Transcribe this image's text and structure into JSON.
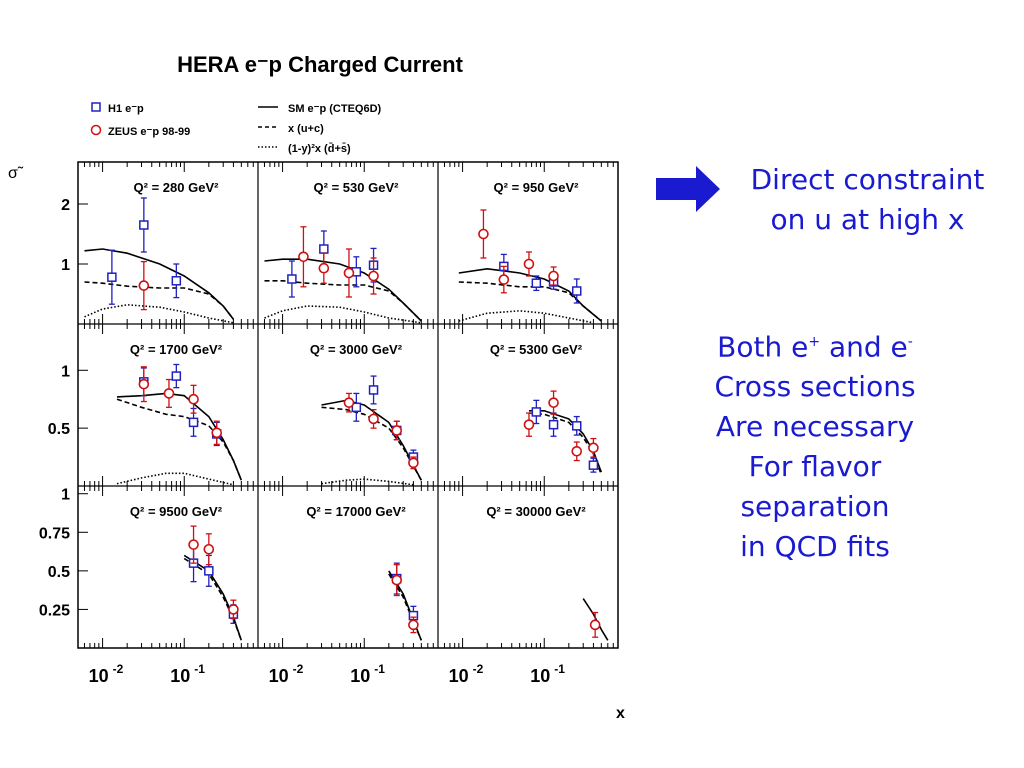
{
  "chart_data": {
    "type": "scatter",
    "title": "HERA e⁻p Charged Current",
    "xlabel": "x",
    "ylabel": "σ̃",
    "xscale": "log",
    "xlim": [
      0.005,
      0.8
    ],
    "x_tick_labels": [
      {
        "base": "10",
        "exp": "-2",
        "value": 0.01
      },
      {
        "base": "10",
        "exp": "-1",
        "value": 0.1
      }
    ],
    "legend": [
      {
        "label": "H1 e⁻p",
        "marker": "square",
        "color": "#2020c0"
      },
      {
        "label": "ZEUS e⁻p 98-99",
        "marker": "circle",
        "color": "#d01010"
      },
      {
        "label": "SM e⁻p (CTEQ6D)",
        "line": "solid"
      },
      {
        "label": "x (u+c)",
        "line": "dashed"
      },
      {
        "label": "(1-y)²x (d̄+s̄)",
        "line": "dotted"
      }
    ],
    "rows": [
      {
        "ylim": [
          0,
          2.7
        ],
        "yticks": [
          {
            "v": 1,
            "label": "1"
          },
          {
            "v": 2,
            "label": "2"
          }
        ]
      },
      {
        "ylim": [
          0,
          1.4
        ],
        "yticks": [
          {
            "v": 0.5,
            "label": "0.5"
          },
          {
            "v": 1,
            "label": "1"
          }
        ]
      },
      {
        "ylim": [
          0,
          1.05
        ],
        "yticks": [
          {
            "v": 0.25,
            "label": "0.25"
          },
          {
            "v": 0.5,
            "label": "0.5"
          },
          {
            "v": 0.75,
            "label": "0.75"
          },
          {
            "v": 1,
            "label": "1"
          }
        ]
      }
    ],
    "panels": [
      {
        "label": "Q² = 280 GeV²",
        "row": 0,
        "col": 0,
        "sm": [
          [
            0.006,
            1.22
          ],
          [
            0.01,
            1.25
          ],
          [
            0.02,
            1.18
          ],
          [
            0.05,
            1.0
          ],
          [
            0.1,
            0.8
          ],
          [
            0.2,
            0.52
          ],
          [
            0.3,
            0.3
          ],
          [
            0.4,
            0.08
          ]
        ],
        "uc": [
          [
            0.006,
            0.7
          ],
          [
            0.01,
            0.68
          ],
          [
            0.02,
            0.63
          ],
          [
            0.05,
            0.6
          ],
          [
            0.1,
            0.6
          ],
          [
            0.2,
            0.5
          ],
          [
            0.3,
            0.3
          ],
          [
            0.4,
            0.08
          ]
        ],
        "ds": [
          [
            0.006,
            0.12
          ],
          [
            0.01,
            0.25
          ],
          [
            0.02,
            0.32
          ],
          [
            0.05,
            0.28
          ],
          [
            0.1,
            0.2
          ],
          [
            0.2,
            0.1
          ],
          [
            0.4,
            0.02
          ]
        ],
        "h1": [
          [
            0.013,
            0.78,
            0.45
          ],
          [
            0.032,
            1.65,
            0.45
          ],
          [
            0.08,
            0.72,
            0.28
          ]
        ],
        "zeus": [
          [
            0.032,
            0.64,
            0.4
          ]
        ]
      },
      {
        "label": "Q² = 530 GeV²",
        "row": 0,
        "col": 1,
        "sm": [
          [
            0.006,
            1.05
          ],
          [
            0.01,
            1.08
          ],
          [
            0.02,
            1.08
          ],
          [
            0.05,
            1.0
          ],
          [
            0.1,
            0.85
          ],
          [
            0.2,
            0.58
          ],
          [
            0.3,
            0.35
          ],
          [
            0.5,
            0.05
          ]
        ],
        "uc": [
          [
            0.006,
            0.72
          ],
          [
            0.01,
            0.72
          ],
          [
            0.02,
            0.68
          ],
          [
            0.05,
            0.65
          ],
          [
            0.1,
            0.65
          ],
          [
            0.2,
            0.55
          ],
          [
            0.3,
            0.35
          ],
          [
            0.5,
            0.05
          ]
        ],
        "ds": [
          [
            0.006,
            0.1
          ],
          [
            0.01,
            0.22
          ],
          [
            0.02,
            0.3
          ],
          [
            0.05,
            0.28
          ],
          [
            0.1,
            0.2
          ],
          [
            0.2,
            0.1
          ],
          [
            0.5,
            0.02
          ]
        ],
        "h1": [
          [
            0.013,
            0.75,
            0.3
          ],
          [
            0.032,
            1.25,
            0.3
          ],
          [
            0.08,
            0.87,
            0.25
          ],
          [
            0.13,
            0.98,
            0.28
          ]
        ],
        "zeus": [
          [
            0.018,
            1.12,
            0.5
          ],
          [
            0.032,
            0.93,
            0.25
          ],
          [
            0.065,
            0.85,
            0.4
          ],
          [
            0.13,
            0.8,
            0.3
          ]
        ]
      },
      {
        "label": "Q² = 950 GeV²",
        "row": 0,
        "col": 2,
        "sm": [
          [
            0.009,
            0.85
          ],
          [
            0.02,
            0.92
          ],
          [
            0.05,
            0.85
          ],
          [
            0.1,
            0.75
          ],
          [
            0.2,
            0.55
          ],
          [
            0.3,
            0.3
          ],
          [
            0.5,
            0.05
          ]
        ],
        "uc": [
          [
            0.009,
            0.7
          ],
          [
            0.02,
            0.68
          ],
          [
            0.05,
            0.62
          ],
          [
            0.1,
            0.62
          ],
          [
            0.2,
            0.52
          ],
          [
            0.3,
            0.3
          ],
          [
            0.5,
            0.05
          ]
        ],
        "ds": [
          [
            0.009,
            0.05
          ],
          [
            0.02,
            0.18
          ],
          [
            0.05,
            0.22
          ],
          [
            0.1,
            0.18
          ],
          [
            0.2,
            0.1
          ],
          [
            0.4,
            0.02
          ]
        ],
        "h1": [
          [
            0.032,
            0.96,
            0.2
          ],
          [
            0.08,
            0.68,
            0.12
          ],
          [
            0.13,
            0.7,
            0.12
          ],
          [
            0.25,
            0.55,
            0.2
          ]
        ],
        "zeus": [
          [
            0.018,
            1.5,
            0.4
          ],
          [
            0.032,
            0.74,
            0.22
          ],
          [
            0.065,
            1.0,
            0.2
          ],
          [
            0.13,
            0.8,
            0.15
          ]
        ]
      },
      {
        "label": "Q² = 1700 GeV²",
        "row": 1,
        "col": 0,
        "sm": [
          [
            0.015,
            0.77
          ],
          [
            0.03,
            0.78
          ],
          [
            0.06,
            0.8
          ],
          [
            0.1,
            0.78
          ],
          [
            0.2,
            0.6
          ],
          [
            0.3,
            0.4
          ],
          [
            0.4,
            0.22
          ],
          [
            0.5,
            0.05
          ]
        ],
        "uc": [
          [
            0.015,
            0.75
          ],
          [
            0.03,
            0.68
          ],
          [
            0.06,
            0.62
          ],
          [
            0.1,
            0.6
          ],
          [
            0.2,
            0.52
          ],
          [
            0.3,
            0.38
          ],
          [
            0.4,
            0.22
          ],
          [
            0.5,
            0.05
          ]
        ],
        "ds": [
          [
            0.015,
            0.02
          ],
          [
            0.03,
            0.07
          ],
          [
            0.06,
            0.11
          ],
          [
            0.1,
            0.11
          ],
          [
            0.2,
            0.06
          ],
          [
            0.4,
            0.01
          ]
        ],
        "h1": [
          [
            0.032,
            0.9,
            0.12
          ],
          [
            0.08,
            0.95,
            0.1
          ],
          [
            0.13,
            0.55,
            0.12
          ],
          [
            0.25,
            0.45,
            0.1
          ]
        ],
        "zeus": [
          [
            0.032,
            0.88,
            0.15
          ],
          [
            0.065,
            0.8,
            0.12
          ],
          [
            0.13,
            0.75,
            0.12
          ],
          [
            0.25,
            0.46,
            0.1
          ]
        ]
      },
      {
        "label": "Q² = 3000 GeV²",
        "row": 1,
        "col": 1,
        "sm": [
          [
            0.03,
            0.7
          ],
          [
            0.06,
            0.74
          ],
          [
            0.1,
            0.7
          ],
          [
            0.2,
            0.55
          ],
          [
            0.3,
            0.35
          ],
          [
            0.4,
            0.18
          ],
          [
            0.5,
            0.05
          ]
        ],
        "uc": [
          [
            0.03,
            0.68
          ],
          [
            0.06,
            0.66
          ],
          [
            0.1,
            0.62
          ],
          [
            0.2,
            0.5
          ],
          [
            0.3,
            0.33
          ],
          [
            0.4,
            0.17
          ],
          [
            0.5,
            0.05
          ]
        ],
        "ds": [
          [
            0.03,
            0.02
          ],
          [
            0.06,
            0.05
          ],
          [
            0.1,
            0.06
          ],
          [
            0.2,
            0.04
          ],
          [
            0.4,
            0.01
          ]
        ],
        "h1": [
          [
            0.08,
            0.68,
            0.12
          ],
          [
            0.13,
            0.83,
            0.12
          ],
          [
            0.25,
            0.48,
            0.08
          ],
          [
            0.4,
            0.25,
            0.06
          ]
        ],
        "zeus": [
          [
            0.065,
            0.72,
            0.08
          ],
          [
            0.13,
            0.58,
            0.08
          ],
          [
            0.25,
            0.48,
            0.08
          ],
          [
            0.4,
            0.2,
            0.05
          ]
        ]
      },
      {
        "label": "Q² = 5300 GeV²",
        "row": 1,
        "col": 2,
        "sm": [
          [
            0.065,
            0.65
          ],
          [
            0.1,
            0.65
          ],
          [
            0.2,
            0.58
          ],
          [
            0.3,
            0.45
          ],
          [
            0.4,
            0.3
          ],
          [
            0.5,
            0.12
          ]
        ],
        "uc": [
          [
            0.065,
            0.63
          ],
          [
            0.1,
            0.62
          ],
          [
            0.2,
            0.55
          ],
          [
            0.3,
            0.42
          ],
          [
            0.4,
            0.28
          ],
          [
            0.5,
            0.1
          ]
        ],
        "ds": [],
        "h1": [
          [
            0.08,
            0.64,
            0.1
          ],
          [
            0.13,
            0.53,
            0.1
          ],
          [
            0.25,
            0.52,
            0.08
          ],
          [
            0.4,
            0.18,
            0.06
          ]
        ],
        "zeus": [
          [
            0.065,
            0.53,
            0.1
          ],
          [
            0.13,
            0.72,
            0.1
          ],
          [
            0.25,
            0.3,
            0.08
          ],
          [
            0.4,
            0.33,
            0.08
          ]
        ]
      },
      {
        "label": "Q² = 9500 GeV²",
        "row": 2,
        "col": 0,
        "sm": [
          [
            0.1,
            0.6
          ],
          [
            0.2,
            0.5
          ],
          [
            0.3,
            0.35
          ],
          [
            0.4,
            0.2
          ],
          [
            0.5,
            0.05
          ]
        ],
        "uc": [
          [
            0.1,
            0.58
          ],
          [
            0.2,
            0.48
          ],
          [
            0.3,
            0.33
          ],
          [
            0.4,
            0.19
          ],
          [
            0.5,
            0.05
          ]
        ],
        "ds": [],
        "h1": [
          [
            0.13,
            0.55,
            0.12
          ],
          [
            0.2,
            0.5,
            0.1
          ],
          [
            0.4,
            0.22,
            0.06
          ]
        ],
        "zeus": [
          [
            0.13,
            0.67,
            0.12
          ],
          [
            0.2,
            0.64,
            0.1
          ],
          [
            0.4,
            0.25,
            0.06
          ]
        ]
      },
      {
        "label": "Q² = 17000 GeV²",
        "row": 2,
        "col": 1,
        "sm": [
          [
            0.2,
            0.5
          ],
          [
            0.3,
            0.35
          ],
          [
            0.4,
            0.18
          ],
          [
            0.5,
            0.05
          ]
        ],
        "uc": [
          [
            0.2,
            0.48
          ],
          [
            0.3,
            0.33
          ],
          [
            0.4,
            0.17
          ],
          [
            0.5,
            0.05
          ]
        ],
        "ds": [],
        "h1": [
          [
            0.25,
            0.45,
            0.1
          ],
          [
            0.4,
            0.21,
            0.06
          ]
        ],
        "zeus": [
          [
            0.25,
            0.44,
            0.1
          ],
          [
            0.4,
            0.15,
            0.05
          ]
        ]
      },
      {
        "label": "Q² = 30000 GeV²",
        "row": 2,
        "col": 2,
        "sm": [
          [
            0.3,
            0.32
          ],
          [
            0.4,
            0.22
          ],
          [
            0.5,
            0.12
          ],
          [
            0.6,
            0.05
          ]
        ],
        "uc": [],
        "ds": [],
        "h1": [],
        "zeus": [
          [
            0.42,
            0.15,
            0.08
          ]
        ]
      }
    ]
  },
  "notes": {
    "direct": [
      "Direct constraint",
      "on u at high x"
    ],
    "both_line1_pre": "Both e",
    "both_line1_sup1": "+",
    "both_line1_mid": " and e",
    "both_line1_sup2": "-",
    "both_rest": [
      "Cross sections",
      "Are necessary",
      "For flavor",
      "separation",
      "in QCD fits"
    ],
    "arrow_color": "#1a1ad0"
  }
}
